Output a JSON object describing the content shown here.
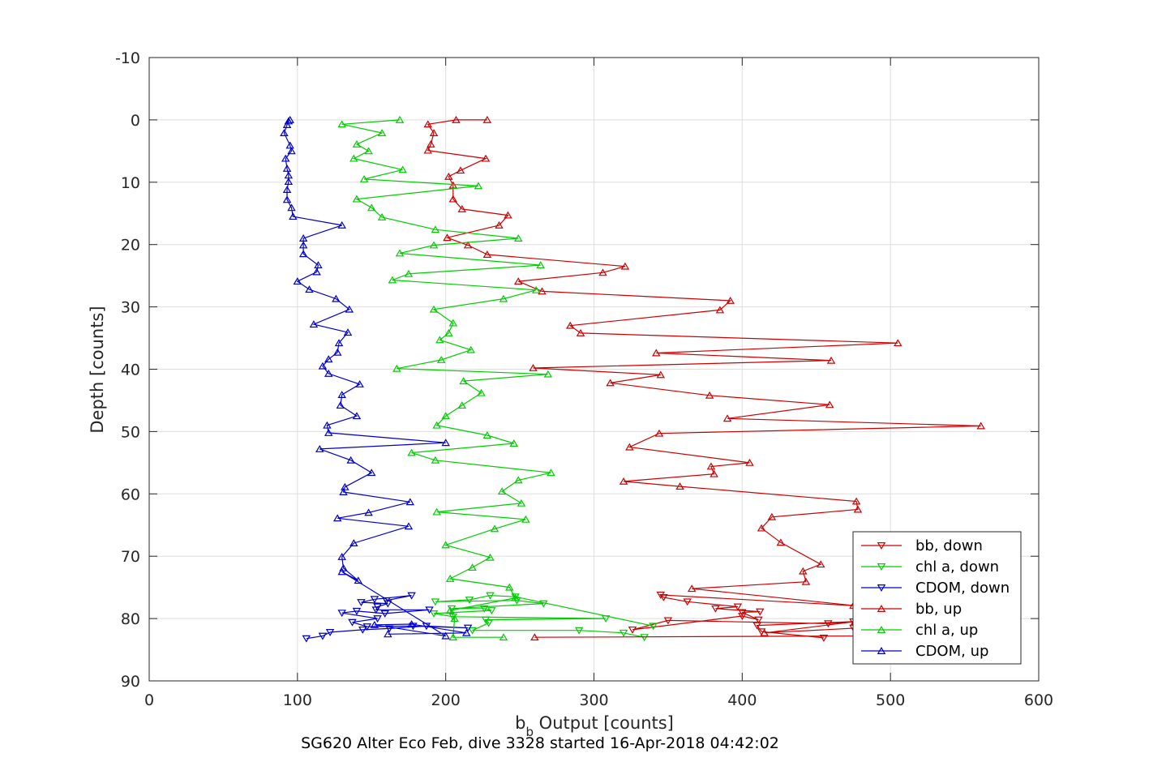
{
  "chart_data": {
    "type": "line",
    "title": "",
    "caption": "SG620 Alter Eco Feb, dive 3328 started 16-Apr-2018 04:42:02",
    "xlabel": {
      "main": "b",
      "sub": "b",
      "rest": " Output [counts]"
    },
    "ylabel": "Depth [counts]",
    "xlim": [
      0,
      600
    ],
    "ylim": [
      -10,
      90
    ],
    "y_reversed": true,
    "grid": true,
    "legend_position": "bottom-right",
    "xticks": [
      "0",
      "100",
      "200",
      "300",
      "400",
      "500",
      "600"
    ],
    "yticks": [
      "-10",
      "0",
      "10",
      "20",
      "30",
      "40",
      "50",
      "60",
      "70",
      "80",
      "90"
    ],
    "series": [
      {
        "name": "bb, down",
        "color": "#cc0000",
        "marker": "triangle-down",
        "points": [
          [
            455,
            83.1
          ],
          [
            413,
            82.1
          ],
          [
            410,
            81.1
          ],
          [
            475,
            80.5
          ],
          [
            458,
            80.8
          ],
          [
            350,
            80.3
          ],
          [
            326,
            81.8
          ],
          [
            400,
            79.6
          ],
          [
            411,
            80.2
          ],
          [
            400,
            79
          ],
          [
            412,
            78.9
          ],
          [
            382,
            78.4
          ],
          [
            397,
            78.1
          ],
          [
            363,
            77.3
          ],
          [
            347,
            76.6
          ],
          [
            345,
            76.2
          ],
          [
            480,
            78
          ],
          [
            475,
            81.5
          ]
        ]
      },
      {
        "name": "chl a, down",
        "color": "#00cc00",
        "marker": "triangle-down",
        "points": [
          [
            334,
            83
          ],
          [
            320,
            82.3
          ],
          [
            290,
            81.9
          ],
          [
            218,
            81.9
          ],
          [
            229,
            80.7
          ],
          [
            227,
            80.2
          ],
          [
            308,
            80
          ],
          [
            205,
            79.7
          ],
          [
            192,
            79.2
          ],
          [
            231,
            78.7
          ],
          [
            226,
            78.4
          ],
          [
            204,
            78.4
          ],
          [
            266,
            77.6
          ],
          [
            248,
            77.1
          ],
          [
            193,
            77.3
          ],
          [
            216,
            77
          ],
          [
            230,
            76.3
          ],
          [
            247,
            76.5
          ],
          [
            340,
            81.2
          ]
        ]
      },
      {
        "name": "CDOM, down",
        "color": "#0000cc",
        "marker": "triangle-down",
        "points": [
          [
            106,
            83.2
          ],
          [
            117,
            82.8
          ],
          [
            122,
            82.2
          ],
          [
            144,
            81.8
          ],
          [
            162,
            81.6
          ],
          [
            187,
            81.2
          ],
          [
            215,
            81.5
          ],
          [
            178,
            81.2
          ],
          [
            147,
            81.3
          ],
          [
            137,
            80.6
          ],
          [
            154,
            80
          ],
          [
            130,
            79.1
          ],
          [
            140,
            78.8
          ],
          [
            159,
            79.2
          ],
          [
            189,
            78.6
          ],
          [
            153,
            78.6
          ],
          [
            154,
            78.1
          ],
          [
            161,
            77.6
          ],
          [
            143,
            77.4
          ],
          [
            152,
            76.9
          ],
          [
            177,
            76.3
          ],
          [
            160,
            77.1
          ]
        ]
      },
      {
        "name": "bb, up",
        "color": "#cc0000",
        "marker": "triangle-up",
        "points": [
          [
            260,
            83
          ],
          [
            480,
            82.8
          ],
          [
            479,
            81.5
          ],
          [
            415,
            82.3
          ],
          [
            476,
            80.5
          ],
          [
            475,
            77.9
          ],
          [
            366,
            75.2
          ],
          [
            443,
            74.1
          ],
          [
            441,
            72.4
          ],
          [
            453,
            71.3
          ],
          [
            426,
            67.8
          ],
          [
            413,
            65.5
          ],
          [
            420,
            63.7
          ],
          [
            478,
            62.5
          ],
          [
            477,
            61.2
          ],
          [
            358,
            58.8
          ],
          [
            320,
            58
          ],
          [
            381,
            56.8
          ],
          [
            379,
            55.6
          ],
          [
            405,
            55
          ],
          [
            324,
            52.5
          ],
          [
            344,
            50.3
          ],
          [
            561,
            49.1
          ],
          [
            390,
            47.9
          ],
          [
            459,
            45.7
          ],
          [
            378,
            44.2
          ],
          [
            311,
            42.2
          ],
          [
            345,
            40.9
          ],
          [
            259,
            39.8
          ],
          [
            460,
            38.6
          ],
          [
            342,
            37.4
          ],
          [
            505,
            35.8
          ],
          [
            291,
            34.2
          ],
          [
            284,
            33
          ],
          [
            385,
            30.5
          ],
          [
            392,
            29
          ],
          [
            265,
            27.5
          ],
          [
            249,
            25.9
          ],
          [
            306,
            24.5
          ],
          [
            321,
            23.5
          ],
          [
            228,
            21.6
          ],
          [
            215,
            20.1
          ],
          [
            201,
            18.9
          ],
          [
            236,
            16.9
          ],
          [
            242,
            15.3
          ],
          [
            211,
            14.3
          ],
          [
            205,
            12.7
          ],
          [
            205,
            10.5
          ],
          [
            202,
            9.1
          ],
          [
            210,
            8.1
          ],
          [
            227,
            6.2
          ],
          [
            188,
            4.9
          ],
          [
            190,
            3.9
          ],
          [
            192,
            2.1
          ],
          [
            188,
            0.7
          ],
          [
            207,
            0
          ],
          [
            228,
            0
          ]
        ]
      },
      {
        "name": "chl a, up",
        "color": "#00cc00",
        "marker": "triangle-up",
        "points": [
          [
            239,
            83
          ],
          [
            205,
            83
          ],
          [
            206,
            80
          ],
          [
            203,
            78.7
          ],
          [
            247,
            76.7
          ],
          [
            243,
            75
          ],
          [
            203,
            73.6
          ],
          [
            218,
            71.8
          ],
          [
            230,
            70.2
          ],
          [
            200,
            68.2
          ],
          [
            233,
            65.6
          ],
          [
            254,
            64.1
          ],
          [
            194,
            62.9
          ],
          [
            251,
            61.5
          ],
          [
            238,
            59.6
          ],
          [
            249,
            57.8
          ],
          [
            271,
            56.6
          ],
          [
            193,
            54.6
          ],
          [
            177,
            53.4
          ],
          [
            246,
            51.9
          ],
          [
            228,
            50.6
          ],
          [
            194,
            49
          ],
          [
            200,
            47.5
          ],
          [
            211,
            45.8
          ],
          [
            224,
            43.8
          ],
          [
            212,
            41.9
          ],
          [
            269,
            40.8
          ],
          [
            167,
            39.9
          ],
          [
            197,
            38.5
          ],
          [
            217,
            36.9
          ],
          [
            196,
            35.3
          ],
          [
            202,
            34.2
          ],
          [
            205,
            32.6
          ],
          [
            192,
            30.4
          ],
          [
            239,
            28.7
          ],
          [
            261,
            27.3
          ],
          [
            164,
            25.7
          ],
          [
            175,
            24.7
          ],
          [
            264,
            23.3
          ],
          [
            169,
            21.4
          ],
          [
            192,
            20.1
          ],
          [
            249,
            19
          ],
          [
            193,
            17.6
          ],
          [
            157,
            15.6
          ],
          [
            150,
            14.1
          ],
          [
            140,
            12.7
          ],
          [
            222,
            10.6
          ],
          [
            145,
            9.5
          ],
          [
            171,
            8
          ],
          [
            138,
            6.2
          ],
          [
            148,
            5
          ],
          [
            140,
            3.9
          ],
          [
            157,
            2.1
          ],
          [
            130,
            0.7
          ],
          [
            169,
            0
          ]
        ]
      },
      {
        "name": "CDOM, up",
        "color": "#0000cc",
        "marker": "triangle-up",
        "points": [
          [
            161,
            82.5
          ],
          [
            214,
            82.3
          ],
          [
            177,
            80.9
          ],
          [
            152,
            81
          ],
          [
            200,
            82.8
          ],
          [
            130,
            72.5
          ],
          [
            141,
            73.9
          ],
          [
            131,
            71.9
          ],
          [
            130,
            70.1
          ],
          [
            138,
            67.9
          ],
          [
            175,
            65.2
          ],
          [
            127,
            63.9
          ],
          [
            148,
            63
          ],
          [
            176,
            61.3
          ],
          [
            131,
            59.7
          ],
          [
            132,
            58.9
          ],
          [
            150,
            56.6
          ],
          [
            136,
            54.6
          ],
          [
            115,
            52.8
          ],
          [
            200,
            51.8
          ],
          [
            121,
            50.2
          ],
          [
            120,
            49
          ],
          [
            140,
            47.5
          ],
          [
            129,
            45.8
          ],
          [
            130,
            44.1
          ],
          [
            142,
            42.4
          ],
          [
            121,
            40.7
          ],
          [
            117,
            39.5
          ],
          [
            121,
            38.4
          ],
          [
            127,
            37.3
          ],
          [
            128,
            35.8
          ],
          [
            134,
            34.1
          ],
          [
            111,
            32.8
          ],
          [
            135,
            30.4
          ],
          [
            126,
            28.7
          ],
          [
            108,
            27.2
          ],
          [
            100,
            25.9
          ],
          [
            113,
            24.4
          ],
          [
            114,
            23.3
          ],
          [
            104,
            21.5
          ],
          [
            104,
            20.1
          ],
          [
            104,
            19
          ],
          [
            130,
            16.9
          ],
          [
            97,
            15.5
          ],
          [
            96,
            14.1
          ],
          [
            93,
            12.8
          ],
          [
            93,
            11.2
          ],
          [
            94,
            9.9
          ],
          [
            94,
            8.9
          ],
          [
            93,
            7.8
          ],
          [
            92,
            6.2
          ],
          [
            96,
            5
          ],
          [
            95,
            4.1
          ],
          [
            91,
            2.1
          ],
          [
            93,
            0.8
          ],
          [
            94,
            0.2
          ],
          [
            95,
            0
          ]
        ]
      }
    ]
  }
}
